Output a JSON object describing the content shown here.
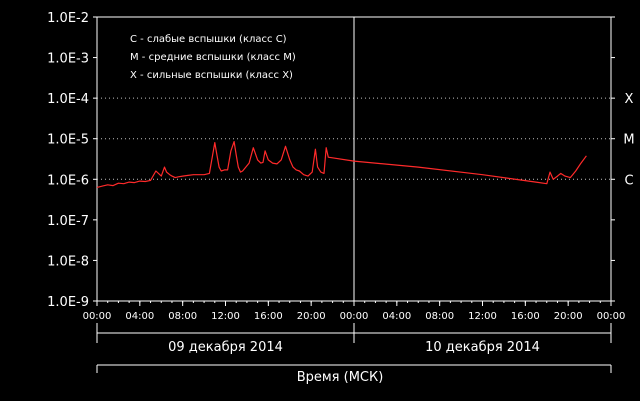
{
  "chart_data": {
    "type": "line",
    "y_scale": "log",
    "ylim": [
      "1.0E-9",
      "1.0E-2"
    ],
    "y_tick_labels": [
      "1.0E-2",
      "1.0E-3",
      "1.0E-4",
      "1.0E-5",
      "1.0E-6",
      "1.0E-7",
      "1.0E-8",
      "1.0E-9"
    ],
    "x_tick_labels": [
      "00:00",
      "04:00",
      "08:00",
      "12:00",
      "16:00",
      "20:00",
      "00:00",
      "04:00",
      "08:00",
      "12:00",
      "16:00",
      "20:00",
      "00:00"
    ],
    "x_range_hours": [
      0,
      48
    ],
    "date_labels": [
      "09 декабря 2014",
      "10 декабря 2014"
    ],
    "xlabel": "Время (МСК)",
    "class_levels": [
      {
        "label": "X",
        "value": 0.0001
      },
      {
        "label": "M",
        "value": 1e-05
      },
      {
        "label": "C",
        "value": 1e-06
      }
    ],
    "legend": [
      "C - слабые вспышки (класс C)",
      "M - средние вспышки (класс M)",
      "X - сильные вспышки (класс X)"
    ],
    "legend_placement": "top-left",
    "day_separator_hour": 24,
    "colors": {
      "background": "#000000",
      "series": "#ff2a2a",
      "text": "#ffffff",
      "xlabel": "#ff9a1f",
      "grid": "#bfbfbf"
    },
    "series": [
      {
        "x": [
          0,
          0.5,
          1.0,
          1.5,
          2.0,
          2.5,
          3.0,
          3.5,
          4.0,
          4.5,
          5.0,
          5.5,
          6.0,
          6.3,
          6.5,
          6.8,
          7.0,
          7.3,
          7.6,
          8.0,
          8.5,
          9.0,
          9.5,
          10.0,
          10.5,
          11.0,
          11.2,
          11.4,
          11.6,
          11.9,
          12.2,
          12.5,
          12.8,
          13.0,
          13.2,
          13.4,
          13.6,
          13.9,
          14.2,
          14.6,
          15.0,
          15.3,
          15.5,
          15.7,
          16.0,
          16.4,
          16.8,
          17.2,
          17.6,
          18.0,
          18.3,
          18.6,
          18.9,
          19.3,
          19.7,
          20.1,
          20.4,
          20.6,
          20.9,
          21.2,
          21.4,
          21.6,
          24.0,
          30.0,
          36.0,
          41.0,
          42.0,
          42.3,
          42.6,
          43.0,
          43.3,
          43.7,
          44.2,
          44.7,
          45.2,
          45.7
        ],
        "y": [
          6.3e-07,
          6.8e-07,
          7.3e-07,
          7e-07,
          8e-07,
          7.8e-07,
          8.5e-07,
          8.3e-07,
          9e-07,
          8.8e-07,
          9.4e-07,
          1.6e-06,
          1.2e-06,
          2e-06,
          1.5e-06,
          1.3e-06,
          1.2e-06,
          1.1e-06,
          1.15e-06,
          1.2e-06,
          1.25e-06,
          1.3e-06,
          1.3e-06,
          1.3e-06,
          1.4e-06,
          8e-06,
          4e-06,
          2e-06,
          1.6e-06,
          1.7e-06,
          1.7e-06,
          5e-06,
          8.5e-06,
          4e-06,
          2e-06,
          1.5e-06,
          1.6e-06,
          2e-06,
          2.5e-06,
          6e-06,
          3e-06,
          2.5e-06,
          2.6e-06,
          5e-06,
          3e-06,
          2.5e-06,
          2.4e-06,
          3e-06,
          6.5e-06,
          3e-06,
          2e-06,
          1.7e-06,
          1.6e-06,
          1.3e-06,
          1.2e-06,
          1.5e-06,
          5.5e-06,
          2e-06,
          1.5e-06,
          1.4e-06,
          6e-06,
          3.5e-06,
          2.8e-06,
          2e-06,
          1.3e-06,
          8.5e-07,
          7.8e-07,
          1.5e-06,
          1e-06,
          1.2e-06,
          1.4e-06,
          1.2e-06,
          1.1e-06,
          1.6e-06,
          2.5e-06,
          3.8e-06
        ]
      }
    ]
  }
}
